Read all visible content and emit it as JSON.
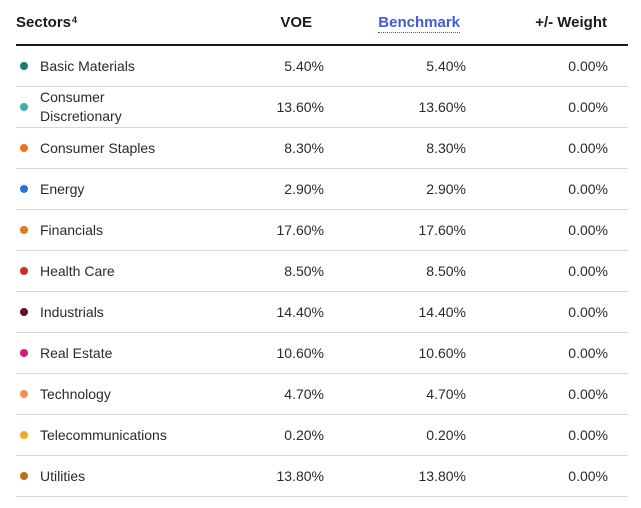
{
  "header": {
    "sector_label": "Sectors",
    "sector_footnote": "4",
    "voe_label": "VOE",
    "benchmark_label": "Benchmark",
    "weight_label": "+/- Weight"
  },
  "rows": [
    {
      "sector": "Basic Materials",
      "voe": "5.40%",
      "benchmark": "5.40%",
      "weight": "0.00%",
      "color": "#1a7a6e"
    },
    {
      "sector": "Consumer Discretionary",
      "voe": "13.60%",
      "benchmark": "13.60%",
      "weight": "0.00%",
      "color": "#3bb3a8"
    },
    {
      "sector": "Consumer Staples",
      "voe": "8.30%",
      "benchmark": "8.30%",
      "weight": "0.00%",
      "color": "#e8741c"
    },
    {
      "sector": "Energy",
      "voe": "2.90%",
      "benchmark": "2.90%",
      "weight": "0.00%",
      "color": "#2d6fd6"
    },
    {
      "sector": "Financials",
      "voe": "17.60%",
      "benchmark": "17.60%",
      "weight": "0.00%",
      "color": "#e07b25"
    },
    {
      "sector": "Health Care",
      "voe": "8.50%",
      "benchmark": "8.50%",
      "weight": "0.00%",
      "color": "#d42a2a"
    },
    {
      "sector": "Industrials",
      "voe": "14.40%",
      "benchmark": "14.40%",
      "weight": "0.00%",
      "color": "#6b0f1f"
    },
    {
      "sector": "Real Estate",
      "voe": "10.60%",
      "benchmark": "10.60%",
      "weight": "0.00%",
      "color": "#d41a7a"
    },
    {
      "sector": "Technology",
      "voe": "4.70%",
      "benchmark": "4.70%",
      "weight": "0.00%",
      "color": "#f0904a"
    },
    {
      "sector": "Telecommunications",
      "voe": "0.20%",
      "benchmark": "0.20%",
      "weight": "0.00%",
      "color": "#f5a623"
    },
    {
      "sector": "Utilities",
      "voe": "13.80%",
      "benchmark": "13.80%",
      "weight": "0.00%",
      "color": "#b8731a"
    }
  ]
}
